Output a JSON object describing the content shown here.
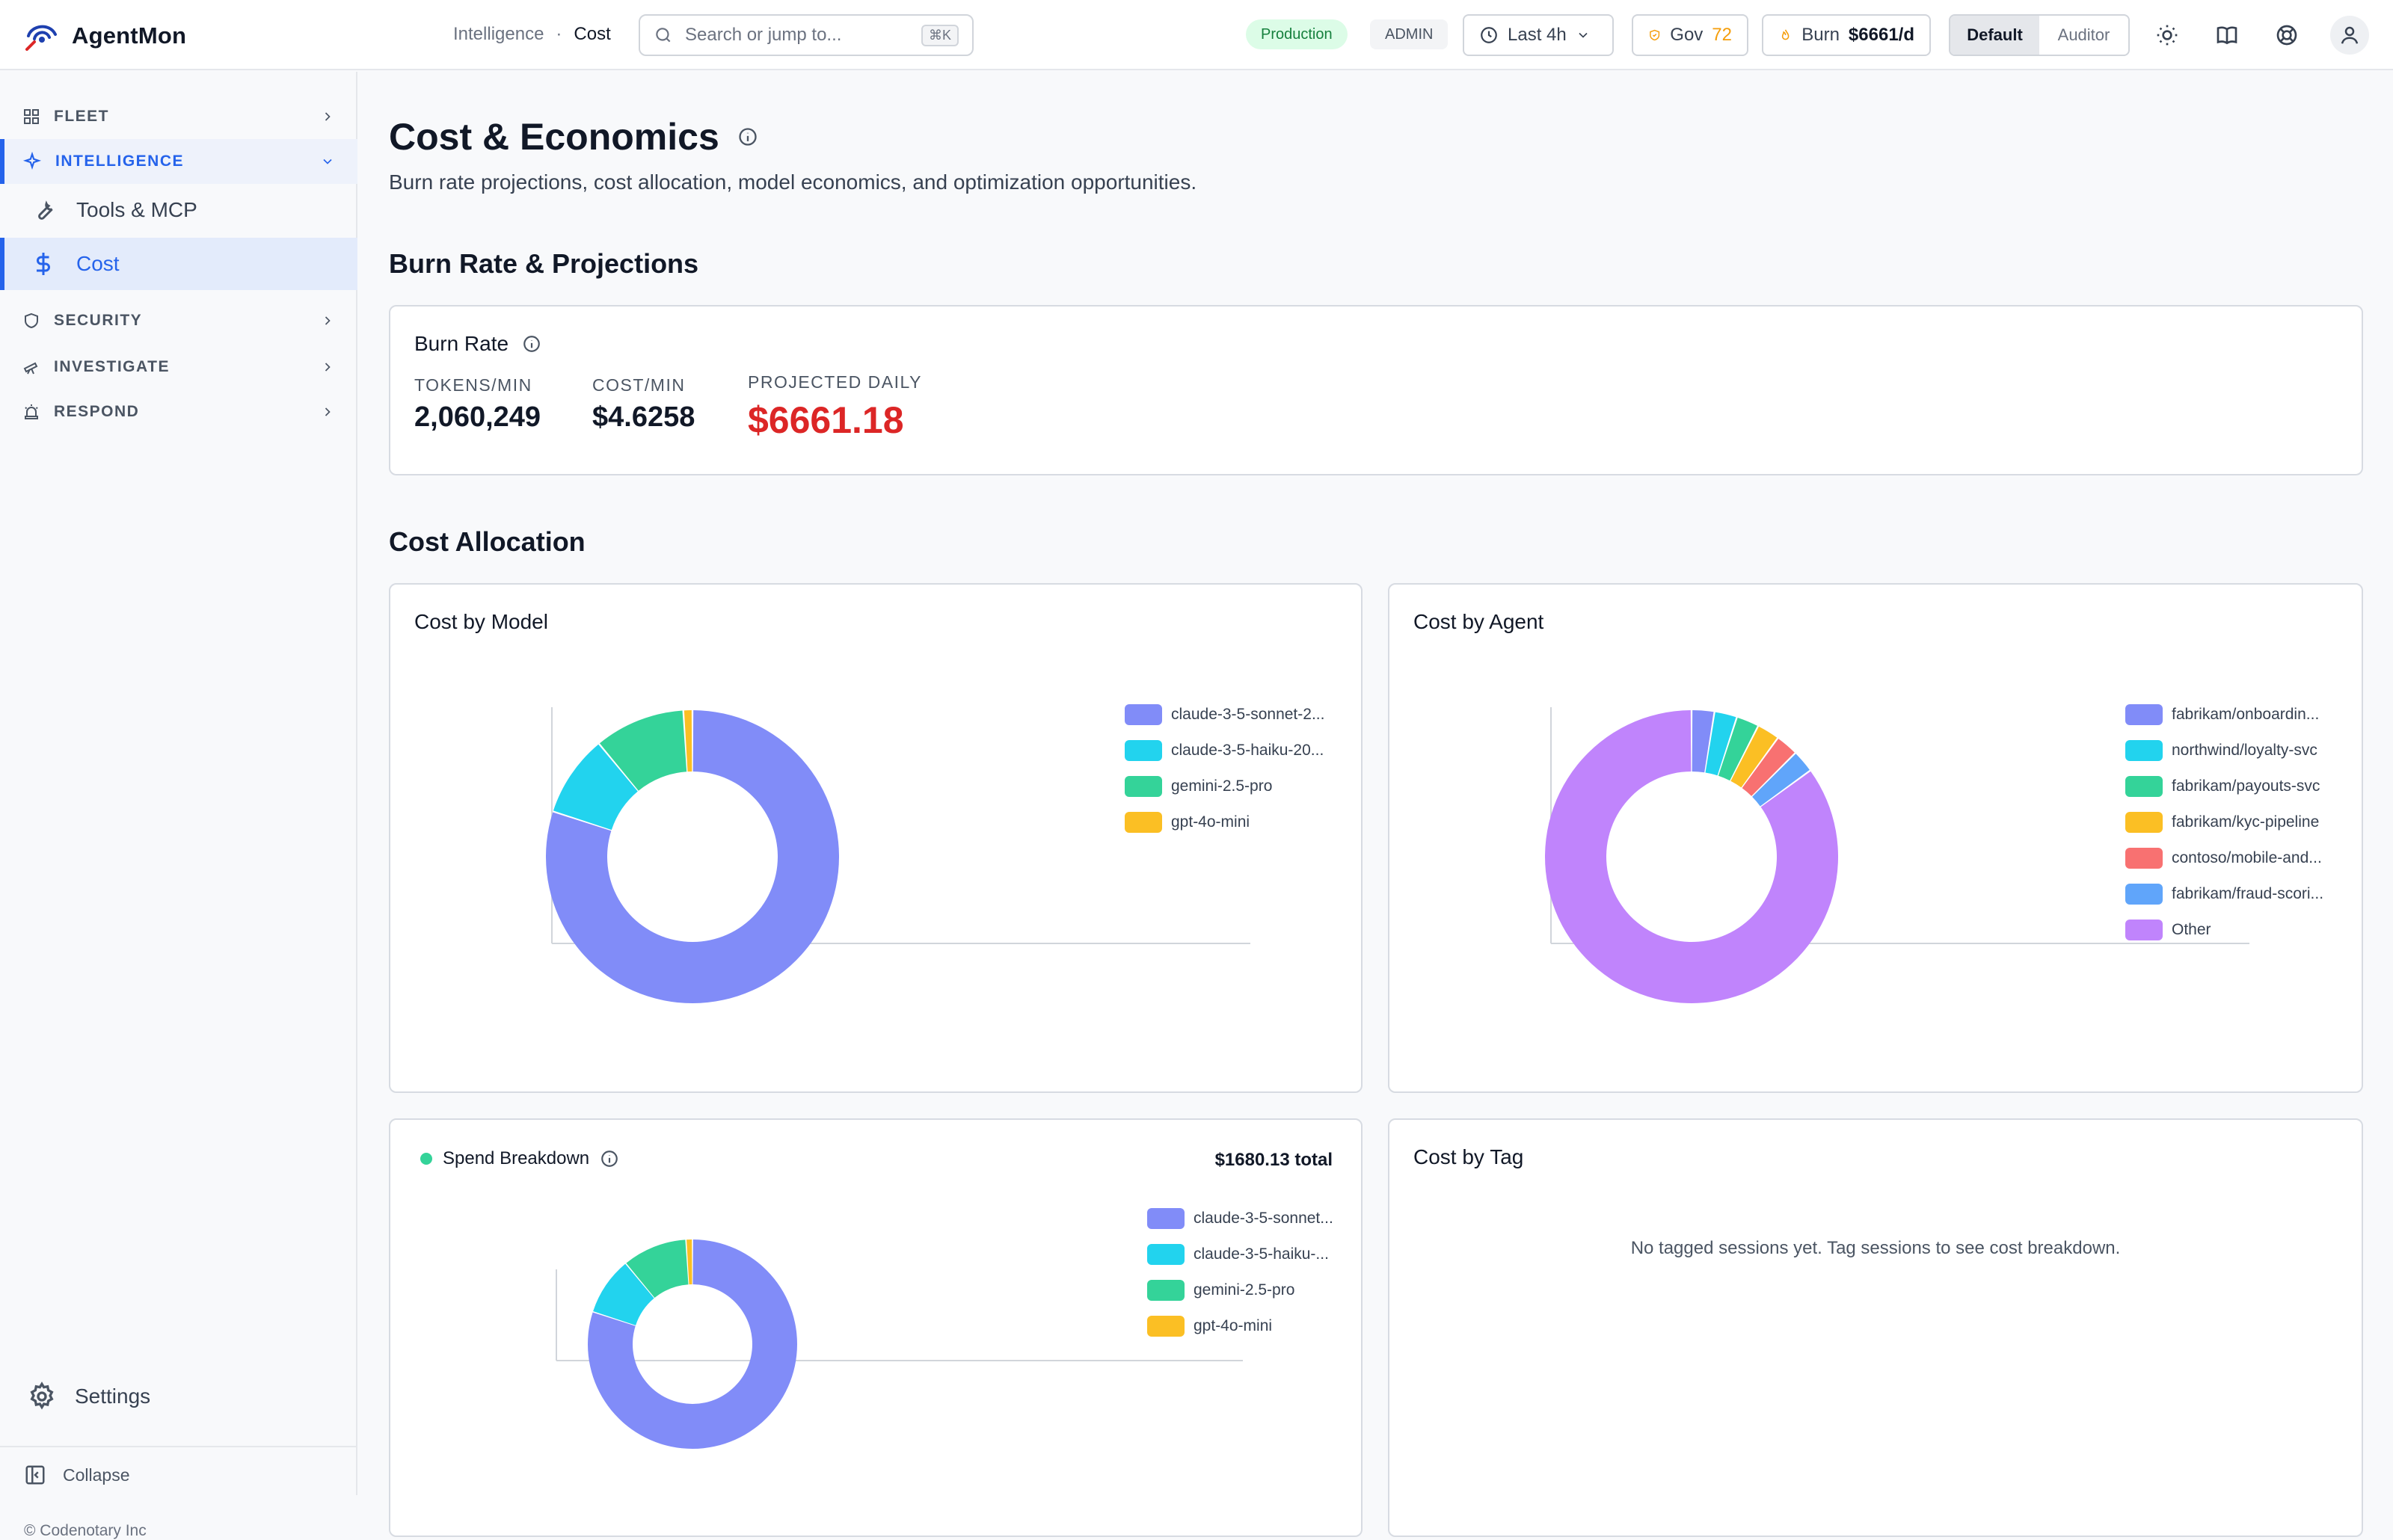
{
  "app": {
    "name": "AgentMon"
  },
  "breadcrumb": {
    "section": "Intelligence",
    "separator": "·",
    "page": "Cost"
  },
  "search": {
    "placeholder": "Search or jump to...",
    "shortcut": "⌘K"
  },
  "topbar": {
    "environment": "Production",
    "role": "ADMIN",
    "time_range": "Last 4h",
    "gov_label": "Gov",
    "gov_score": "72",
    "burn_label": "Burn",
    "burn_value": "$6661/d",
    "view_modes": [
      "Default",
      "Auditor"
    ],
    "active_view": "Default"
  },
  "sidebar": {
    "groups": [
      {
        "label": "FLEET",
        "icon": "grid-icon"
      },
      {
        "label": "INTELLIGENCE",
        "icon": "sparkle-icon",
        "expanded": true
      },
      {
        "label": "SECURITY",
        "icon": "shield-icon"
      },
      {
        "label": "INVESTIGATE",
        "icon": "telescope-icon"
      },
      {
        "label": "RESPOND",
        "icon": "siren-icon"
      }
    ],
    "items": [
      {
        "label": "Tools & MCP",
        "icon": "wrench-icon"
      },
      {
        "label": "Cost",
        "icon": "dollar-icon",
        "active": true
      }
    ],
    "settings": "Settings",
    "collapse": "Collapse",
    "copyright": "© Codenotary Inc"
  },
  "page": {
    "title": "Cost & Economics",
    "subtitle": "Burn rate projections, cost allocation, model economics, and optimization opportunities."
  },
  "burn_section": {
    "heading": "Burn Rate & Projections",
    "card_title": "Burn Rate",
    "metrics": [
      {
        "label": "TOKENS/MIN",
        "value": "2,060,249"
      },
      {
        "label": "COST/MIN",
        "value": "$4.6258"
      },
      {
        "label": "PROJECTED DAILY",
        "value": "$6661.18",
        "color": "#dc2626"
      }
    ]
  },
  "allocation_section": {
    "heading": "Cost Allocation",
    "cost_by_model": {
      "title": "Cost by Model",
      "legend": [
        "claude-3-5-sonnet-2...",
        "claude-3-5-haiku-20...",
        "gemini-2.5-pro",
        "gpt-4o-mini"
      ]
    },
    "cost_by_agent": {
      "title": "Cost by Agent",
      "legend": [
        "fabrikam/onboardin...",
        "northwind/loyalty-svc",
        "fabrikam/payouts-svc",
        "fabrikam/kyc-pipeline",
        "contoso/mobile-and...",
        "fabrikam/fraud-scori...",
        "Other"
      ]
    },
    "spend_breakdown": {
      "title": "Spend Breakdown",
      "total": "$1680.13 total",
      "legend": [
        "claude-3-5-sonnet...",
        "claude-3-5-haiku-...",
        "gemini-2.5-pro",
        "gpt-4o-mini"
      ]
    },
    "cost_by_tag": {
      "title": "Cost by Tag",
      "empty": "No tagged sessions yet. Tag sessions to see cost breakdown."
    }
  },
  "chart_data": [
    {
      "type": "pie",
      "title": "Cost by Model",
      "categories": [
        "claude-3-5-sonnet-2...",
        "claude-3-5-haiku-20...",
        "gemini-2.5-pro",
        "gpt-4o-mini"
      ],
      "values": [
        80,
        9,
        10,
        1
      ],
      "colors": [
        "#818cf8",
        "#22d3ee",
        "#34d399",
        "#fbbf24"
      ],
      "legend": "right"
    },
    {
      "type": "pie",
      "title": "Cost by Agent",
      "categories": [
        "fabrikam/onboardin...",
        "northwind/loyalty-svc",
        "fabrikam/payouts-svc",
        "fabrikam/kyc-pipeline",
        "contoso/mobile-and...",
        "fabrikam/fraud-scori...",
        "Other"
      ],
      "values": [
        2.5,
        2.5,
        2.5,
        2.5,
        2.5,
        2.5,
        85
      ],
      "colors": [
        "#818cf8",
        "#22d3ee",
        "#34d399",
        "#fbbf24",
        "#f87171",
        "#60a5fa",
        "#c084fc"
      ],
      "legend": "right"
    },
    {
      "type": "pie",
      "title": "Spend Breakdown",
      "categories": [
        "claude-3-5-sonnet...",
        "claude-3-5-haiku-...",
        "gemini-2.5-pro",
        "gpt-4o-mini"
      ],
      "values": [
        80,
        9,
        10,
        1
      ],
      "colors": [
        "#818cf8",
        "#22d3ee",
        "#34d399",
        "#fbbf24"
      ],
      "legend": "right"
    }
  ]
}
